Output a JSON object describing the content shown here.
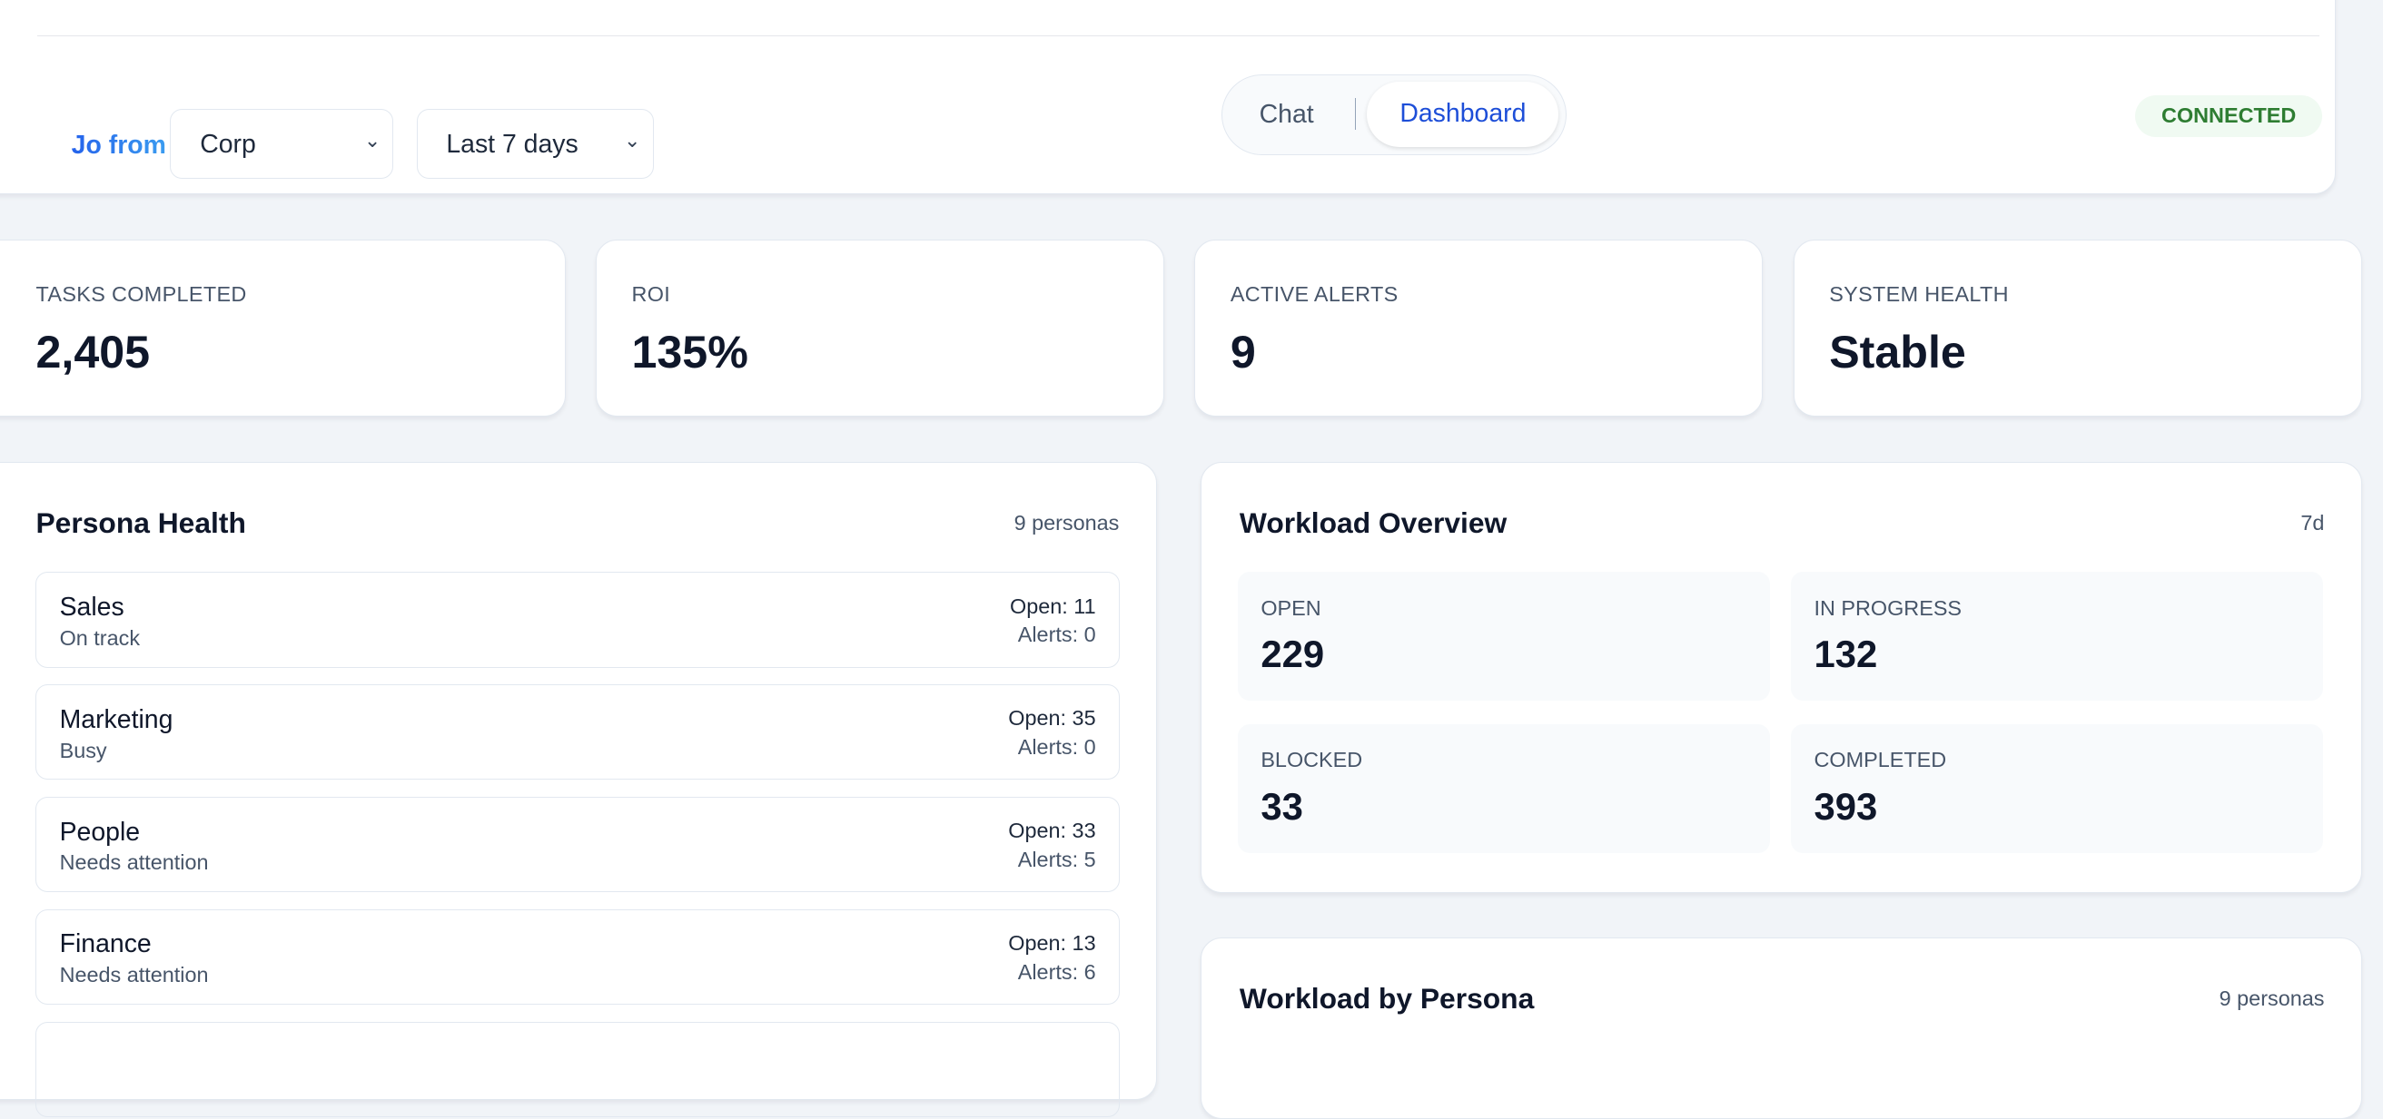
{
  "header": {
    "brand": "Jo from",
    "org_select": "Corp",
    "range_select": "Last 7 days",
    "tabs": [
      "Chat",
      "Dashboard"
    ],
    "active_tab": "Dashboard",
    "status": "CONNECTED",
    "status_color": "#2e7d32"
  },
  "kpis": [
    {
      "label": "TASKS COMPLETED",
      "value": "2,405"
    },
    {
      "label": "ROI",
      "value": "135%"
    },
    {
      "label": "ACTIVE ALERTS",
      "value": "9"
    },
    {
      "label": "SYSTEM HEALTH",
      "value": "Stable"
    }
  ],
  "persona_health": {
    "title": "Persona Health",
    "meta": "9 personas",
    "items": [
      {
        "name": "Sales",
        "status": "On track",
        "open": "Open: 11",
        "alerts": "Alerts: 0"
      },
      {
        "name": "Marketing",
        "status": "Busy",
        "open": "Open: 35",
        "alerts": "Alerts: 0"
      },
      {
        "name": "People",
        "status": "Needs attention",
        "open": "Open: 33",
        "alerts": "Alerts: 5"
      },
      {
        "name": "Finance",
        "status": "Needs attention",
        "open": "Open: 13",
        "alerts": "Alerts: 6"
      }
    ]
  },
  "workload_overview": {
    "title": "Workload Overview",
    "meta": "7d",
    "tiles": [
      {
        "label": "OPEN",
        "value": "229"
      },
      {
        "label": "IN PROGRESS",
        "value": "132"
      },
      {
        "label": "BLOCKED",
        "value": "33"
      },
      {
        "label": "COMPLETED",
        "value": "393"
      }
    ]
  },
  "workload_by_persona": {
    "title": "Workload by Persona",
    "meta": "9 personas"
  }
}
